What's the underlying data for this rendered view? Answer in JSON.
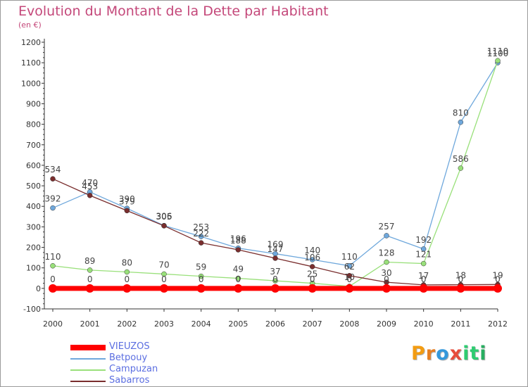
{
  "title": "Evolution du Montant de la Dette par Habitant",
  "subtitle": "(en €)",
  "logo": {
    "letters": [
      "P",
      "r",
      "o",
      "x",
      "i",
      "t",
      "i"
    ],
    "colors": [
      "#f39c12",
      "#e67e22",
      "#3498db",
      "#e74c3c",
      "#2ecc71",
      "#2ecc71",
      "#27ae60"
    ]
  },
  "chart_data": {
    "type": "line",
    "x": [
      "2000",
      "2001",
      "2002",
      "2003",
      "2004",
      "2005",
      "2006",
      "2007",
      "2008",
      "2009",
      "2010",
      "2011",
      "2012"
    ],
    "ylim": [
      -100,
      1200
    ],
    "yticks": [
      "-100",
      "0",
      "100",
      "200",
      "300",
      "400",
      "500",
      "600",
      "700",
      "800",
      "900",
      "1000",
      "1100",
      "1200"
    ],
    "grid": false,
    "legend_position": "bottom-left",
    "series": [
      {
        "name": "VIEUZOS",
        "color": "#ff0000",
        "values": [
          0,
          0,
          0,
          0,
          0,
          0,
          0,
          0,
          0,
          0,
          0,
          0,
          0
        ],
        "labels": [
          "0",
          "0",
          "0",
          "0",
          "0",
          "0",
          "0",
          "0",
          "0",
          "0",
          "0",
          "0",
          "0"
        ]
      },
      {
        "name": "Betpouy",
        "color": "#6fa8dc",
        "values": [
          392,
          470,
          390,
          306,
          253,
          196,
          169,
          140,
          110,
          257,
          192,
          810,
          1100
        ],
        "labels": [
          "392",
          "470",
          "390",
          "306",
          "253",
          "196",
          "169",
          "140",
          "110",
          "257",
          "192",
          "810",
          "1100"
        ]
      },
      {
        "name": "Campuzan",
        "color": "#99e07a",
        "values": [
          110,
          89,
          80,
          70,
          59,
          49,
          37,
          25,
          10,
          128,
          121,
          586,
          1110
        ],
        "labels": [
          "110",
          "89",
          "80",
          "70",
          "59",
          "49",
          "37",
          "25",
          "10",
          "128",
          "121",
          "586",
          "1110"
        ]
      },
      {
        "name": "Sabarros",
        "color": "#7a2e2e",
        "values": [
          534,
          453,
          379,
          305,
          222,
          188,
          147,
          106,
          62,
          30,
          17,
          18,
          19
        ],
        "labels": [
          "534",
          "453",
          "379",
          "305",
          "222",
          "188",
          "147",
          "106",
          "62",
          "30",
          "17",
          "18",
          "19"
        ]
      }
    ]
  }
}
